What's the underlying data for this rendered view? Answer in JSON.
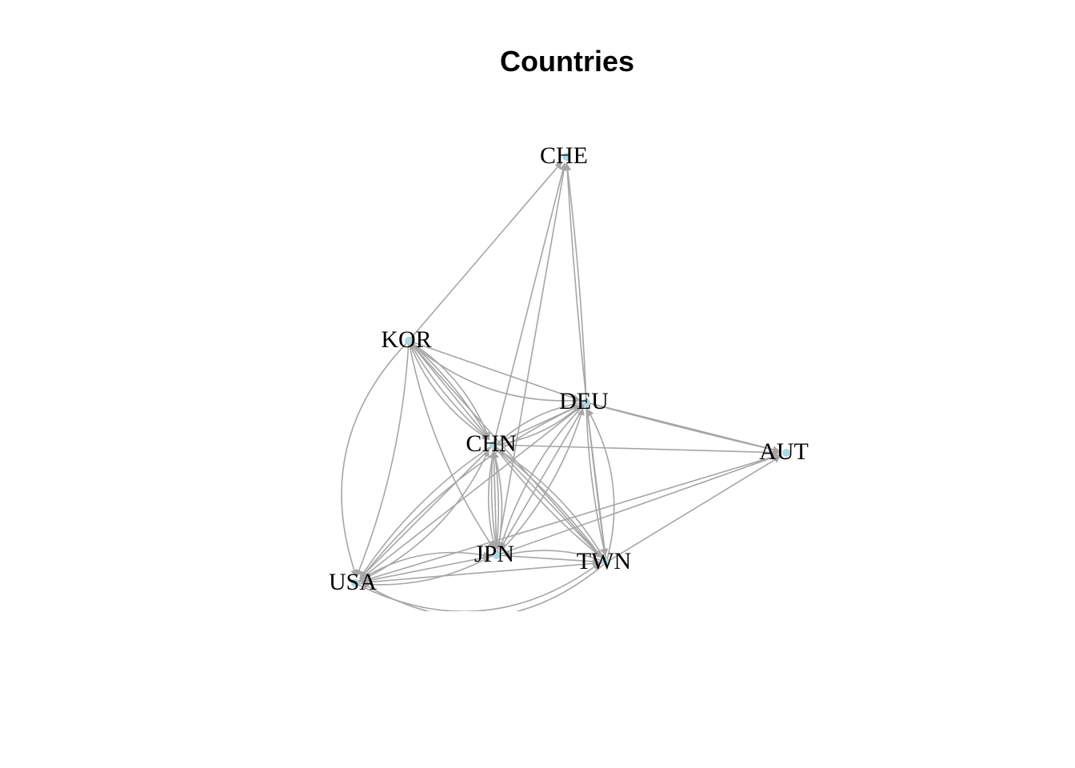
{
  "title": "Countries",
  "colors": {
    "edge": "#a6a6a6",
    "node": "#add8e6",
    "label": "#000000"
  },
  "nodes": [
    {
      "id": "CHE",
      "label": "CHE"
    },
    {
      "id": "KOR",
      "label": "KOR"
    },
    {
      "id": "DEU",
      "label": "DEU"
    },
    {
      "id": "CHN",
      "label": "CHN"
    },
    {
      "id": "AUT",
      "label": "AUT"
    },
    {
      "id": "JPN",
      "label": "JPN"
    },
    {
      "id": "TWN",
      "label": "TWN"
    },
    {
      "id": "USA",
      "label": "USA"
    }
  ],
  "edges": [
    {
      "source": "KOR",
      "target": "CHE",
      "curve": 0
    },
    {
      "source": "CHN",
      "target": "CHE",
      "curve": 0
    },
    {
      "source": "JPN",
      "target": "CHE",
      "curve": 0
    },
    {
      "source": "DEU",
      "target": "CHE",
      "curve": 0.02
    },
    {
      "source": "TWN",
      "target": "CHE",
      "curve": -0.02
    },
    {
      "source": "KOR",
      "target": "DEU",
      "curve": 0
    },
    {
      "source": "KOR",
      "target": "DEU",
      "curve": 0.2
    },
    {
      "source": "KOR",
      "target": "CHN",
      "curve": 0
    },
    {
      "source": "KOR",
      "target": "CHN",
      "curve": 0.08
    },
    {
      "source": "KOR",
      "target": "CHN",
      "curve": -0.08
    },
    {
      "source": "KOR",
      "target": "CHN",
      "curve": 0.16
    },
    {
      "source": "KOR",
      "target": "CHN",
      "curve": -0.16
    },
    {
      "source": "KOR",
      "target": "JPN",
      "curve": 0.1
    },
    {
      "source": "KOR",
      "target": "USA",
      "curve": 0.3
    },
    {
      "source": "KOR",
      "target": "USA",
      "curve": -0.08
    },
    {
      "source": "KOR",
      "target": "TWN",
      "curve": 0
    },
    {
      "source": "CHN",
      "target": "DEU",
      "curve": 0
    },
    {
      "source": "CHN",
      "target": "DEU",
      "curve": 0.15
    },
    {
      "source": "DEU",
      "target": "CHN",
      "curve": 0.15
    },
    {
      "source": "DEU",
      "target": "AUT",
      "curve": 0
    },
    {
      "source": "DEU",
      "target": "AUT",
      "curve": 0.01
    },
    {
      "source": "CHN",
      "target": "AUT",
      "curve": 0
    },
    {
      "source": "JPN",
      "target": "AUT",
      "curve": 0
    },
    {
      "source": "USA",
      "target": "AUT",
      "curve": 0
    },
    {
      "source": "TWN",
      "target": "AUT",
      "curve": 0
    },
    {
      "source": "CHN",
      "target": "JPN",
      "curve": 0
    },
    {
      "source": "CHN",
      "target": "JPN",
      "curve": 0.06
    },
    {
      "source": "CHN",
      "target": "JPN",
      "curve": -0.06
    },
    {
      "source": "JPN",
      "target": "CHN",
      "curve": 0.12
    },
    {
      "source": "JPN",
      "target": "CHN",
      "curve": -0.12
    },
    {
      "source": "CHN",
      "target": "TWN",
      "curve": 0
    },
    {
      "source": "CHN",
      "target": "TWN",
      "curve": 0.06
    },
    {
      "source": "CHN",
      "target": "TWN",
      "curve": -0.06
    },
    {
      "source": "TWN",
      "target": "CHN",
      "curve": 0.12
    },
    {
      "source": "CHN",
      "target": "USA",
      "curve": 0
    },
    {
      "source": "CHN",
      "target": "USA",
      "curve": 0.1
    },
    {
      "source": "USA",
      "target": "CHN",
      "curve": 0.18
    },
    {
      "source": "DEU",
      "target": "JPN",
      "curve": 0
    },
    {
      "source": "DEU",
      "target": "JPN",
      "curve": 0.12
    },
    {
      "source": "JPN",
      "target": "DEU",
      "curve": 0.12
    },
    {
      "source": "DEU",
      "target": "TWN",
      "curve": 0
    },
    {
      "source": "DEU",
      "target": "TWN",
      "curve": 0.05
    },
    {
      "source": "TWN",
      "target": "DEU",
      "curve": 0.2
    },
    {
      "source": "DEU",
      "target": "USA",
      "curve": 0
    },
    {
      "source": "DEU",
      "target": "USA",
      "curve": 0.12
    },
    {
      "source": "JPN",
      "target": "TWN",
      "curve": 0
    },
    {
      "source": "TWN",
      "target": "JPN",
      "curve": 0.15
    },
    {
      "source": "JPN",
      "target": "USA",
      "curve": 0
    },
    {
      "source": "USA",
      "target": "JPN",
      "curve": 0.15
    },
    {
      "source": "USA",
      "target": "JPN",
      "curve": -0.2
    },
    {
      "source": "TWN",
      "target": "USA",
      "curve": 0
    },
    {
      "source": "USA",
      "target": "TWN",
      "curve": 0.3
    },
    {
      "source": "TWN",
      "target": "USA",
      "curve": -0.35
    }
  ]
}
